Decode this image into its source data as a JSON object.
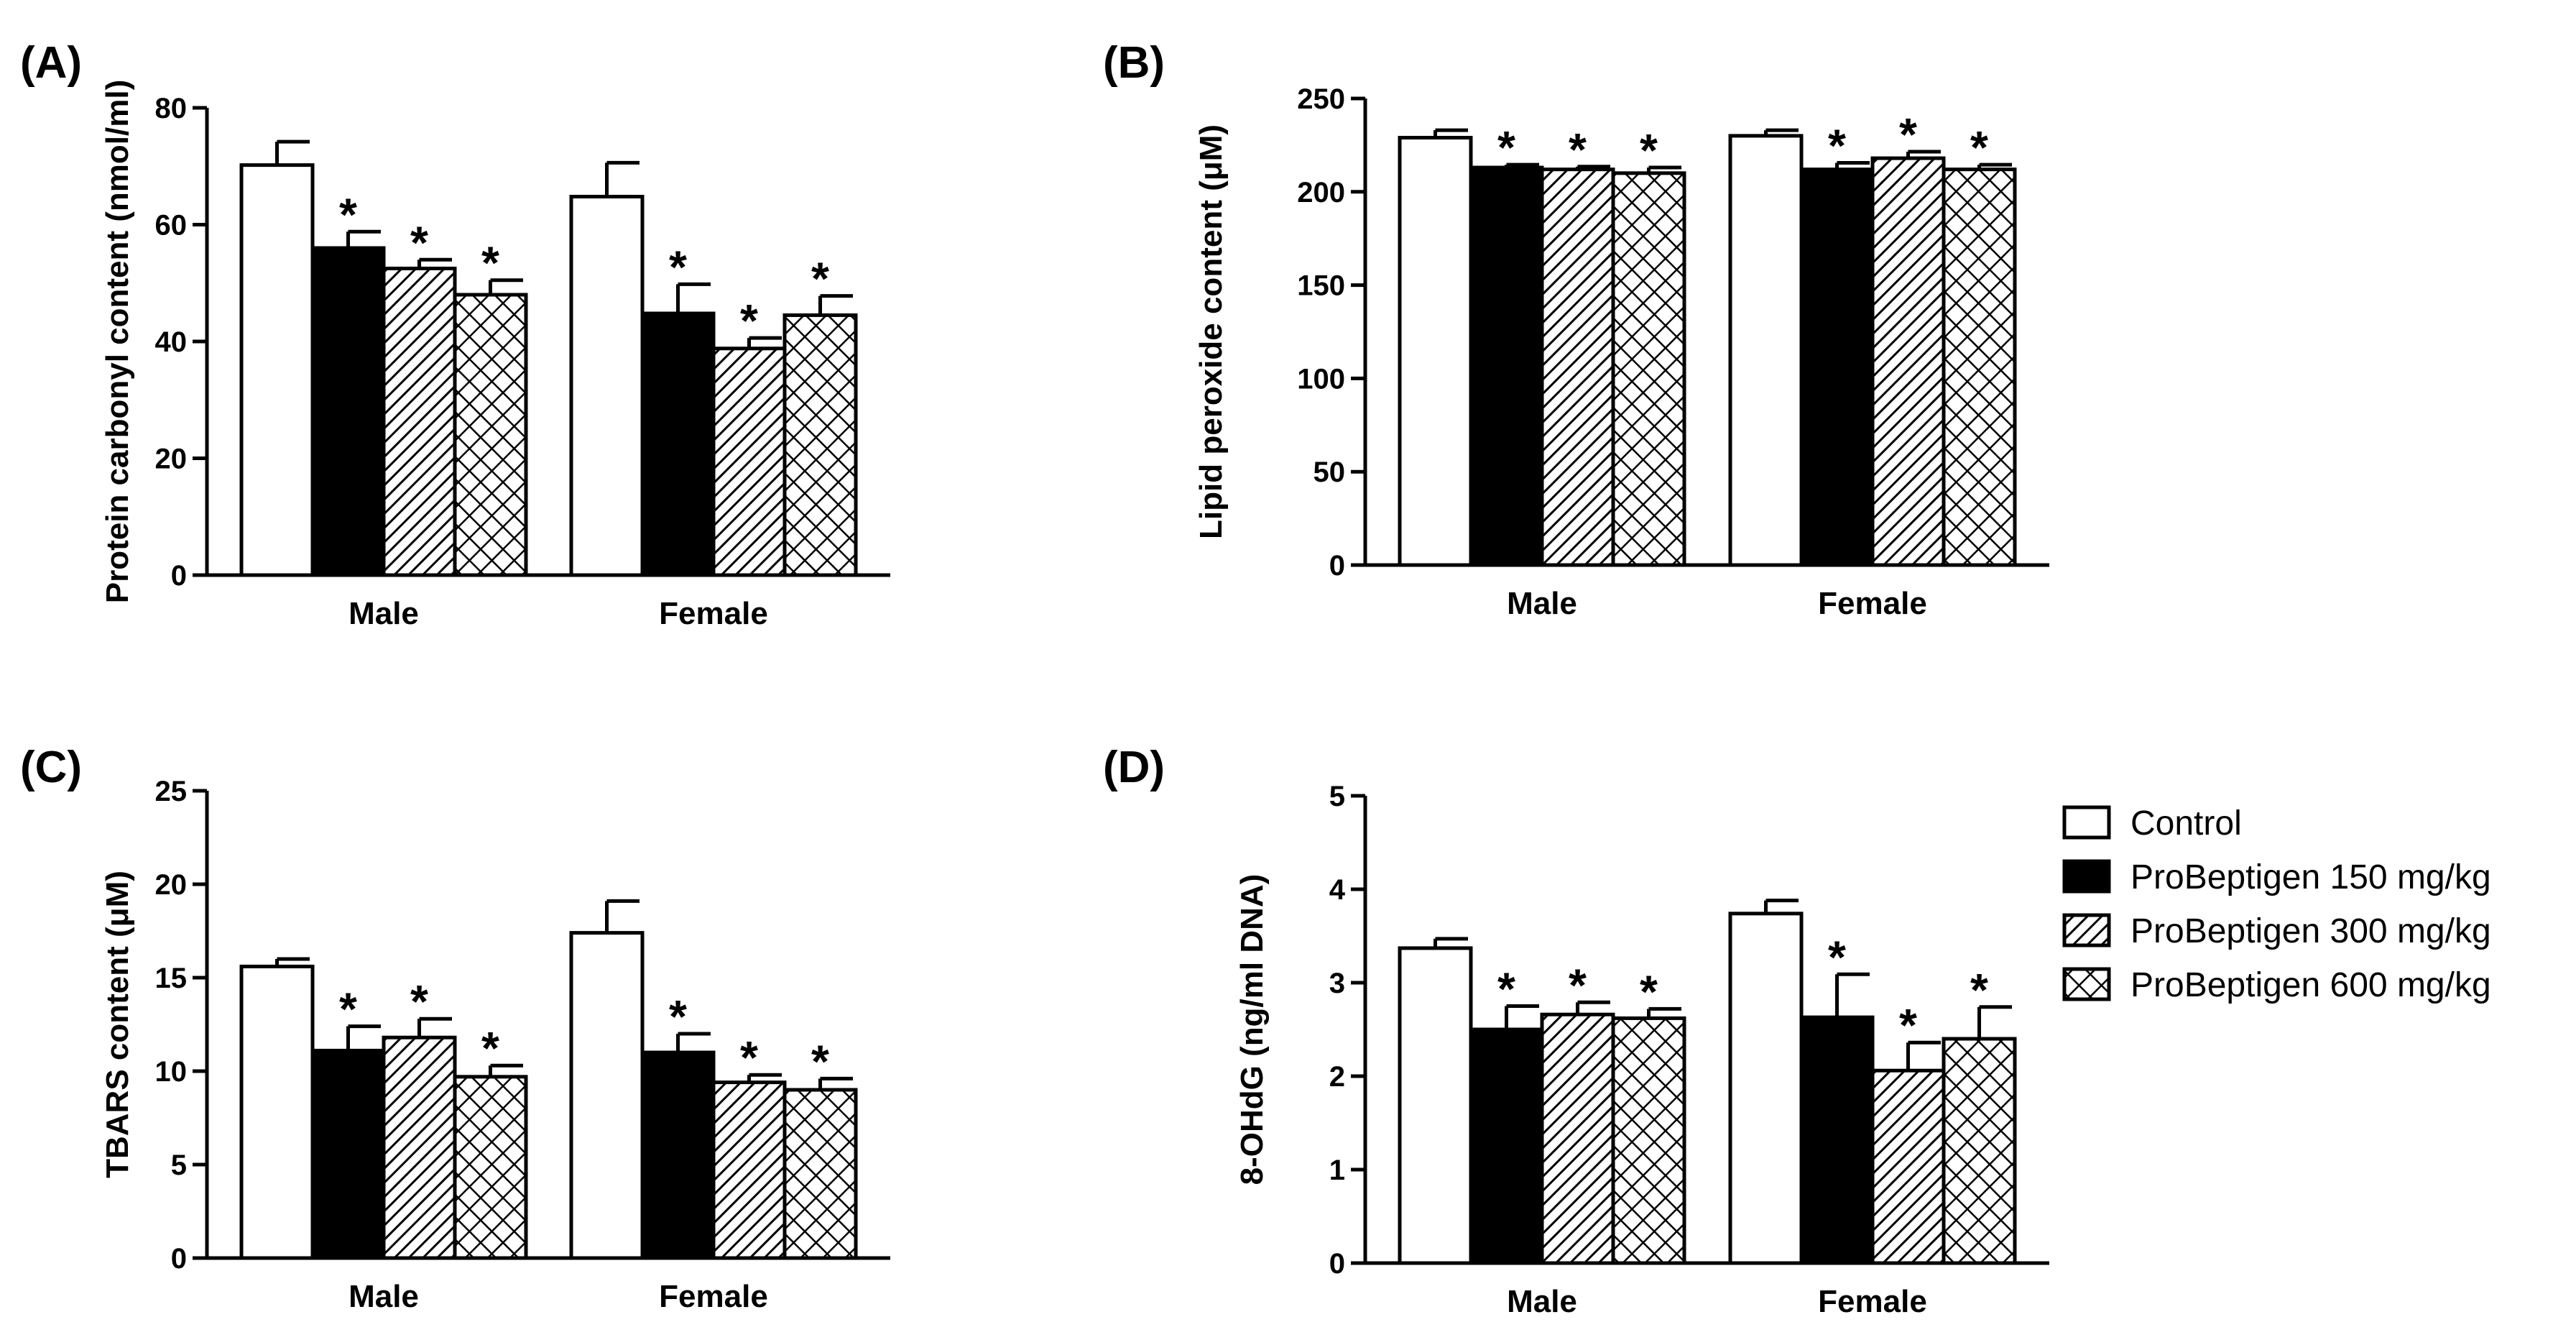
{
  "chart_data": [
    {
      "panel": "(A)",
      "type": "bar",
      "ylabel": "Protein carbonyl content (nmol/ml)",
      "ylim": [
        0,
        80
      ],
      "yticks": [
        0,
        20,
        40,
        60,
        80
      ],
      "categories": [
        "Male",
        "Female"
      ],
      "series": [
        {
          "name": "Control",
          "values": [
            70.2,
            64.8
          ],
          "errors": [
            4.0,
            5.8
          ],
          "sig": [
            false,
            false
          ]
        },
        {
          "name": "ProBeptigen 150 mg/kg",
          "values": [
            56.0,
            44.8
          ],
          "errors": [
            2.8,
            5.0
          ],
          "sig": [
            true,
            true
          ]
        },
        {
          "name": "ProBeptigen 300 mg/kg",
          "values": [
            52.5,
            38.8
          ],
          "errors": [
            1.5,
            1.8
          ],
          "sig": [
            true,
            true
          ]
        },
        {
          "name": "ProBeptigen 600 mg/kg",
          "values": [
            48.0,
            44.5
          ],
          "errors": [
            2.5,
            3.3
          ],
          "sig": [
            true,
            true
          ]
        }
      ]
    },
    {
      "panel": "(B)",
      "type": "bar",
      "ylabel": "Lipid peroxide content (μM)",
      "ylim": [
        0,
        250
      ],
      "yticks": [
        0,
        50,
        100,
        150,
        200,
        250
      ],
      "categories": [
        "Male",
        "Female"
      ],
      "series": [
        {
          "name": "Control",
          "values": [
            229,
            230
          ],
          "errors": [
            4,
            3
          ],
          "sig": [
            false,
            false
          ]
        },
        {
          "name": "ProBeptigen 150 mg/kg",
          "values": [
            213,
            212
          ],
          "errors": [
            1.5,
            3.5
          ],
          "sig": [
            true,
            true
          ]
        },
        {
          "name": "ProBeptigen 300 mg/kg",
          "values": [
            212,
            218
          ],
          "errors": [
            1.5,
            3.5
          ],
          "sig": [
            true,
            true
          ]
        },
        {
          "name": "ProBeptigen 600 mg/kg",
          "values": [
            210,
            212
          ],
          "errors": [
            3,
            2.5
          ],
          "sig": [
            true,
            true
          ]
        }
      ]
    },
    {
      "panel": "(C)",
      "type": "bar",
      "ylabel": "TBARS content (μM)",
      "ylim": [
        0,
        25
      ],
      "yticks": [
        0,
        5,
        10,
        15,
        20,
        25
      ],
      "categories": [
        "Male",
        "Female"
      ],
      "series": [
        {
          "name": "Control",
          "values": [
            15.6,
            17.4
          ],
          "errors": [
            0.4,
            1.7
          ],
          "sig": [
            false,
            false
          ]
        },
        {
          "name": "ProBeptigen 150 mg/kg",
          "values": [
            11.1,
            11.0
          ],
          "errors": [
            1.3,
            1.0
          ],
          "sig": [
            true,
            true
          ]
        },
        {
          "name": "ProBeptigen 300 mg/kg",
          "values": [
            11.8,
            9.4
          ],
          "errors": [
            1.0,
            0.4
          ],
          "sig": [
            true,
            true
          ]
        },
        {
          "name": "ProBeptigen 600 mg/kg",
          "values": [
            9.7,
            9.0
          ],
          "errors": [
            0.6,
            0.6
          ],
          "sig": [
            true,
            true
          ]
        }
      ]
    },
    {
      "panel": "(D)",
      "type": "bar",
      "ylabel": "8-OHdG (ng/ml DNA)",
      "ylim": [
        0,
        5
      ],
      "yticks": [
        0,
        1,
        2,
        3,
        4,
        5
      ],
      "categories": [
        "Male",
        "Female"
      ],
      "series": [
        {
          "name": "Control",
          "values": [
            3.37,
            3.74
          ],
          "errors": [
            0.1,
            0.14
          ],
          "sig": [
            false,
            false
          ]
        },
        {
          "name": "ProBeptigen 150 mg/kg",
          "values": [
            2.5,
            2.63
          ],
          "errors": [
            0.25,
            0.46
          ],
          "sig": [
            true,
            true
          ]
        },
        {
          "name": "ProBeptigen 300 mg/kg",
          "values": [
            2.66,
            2.06
          ],
          "errors": [
            0.13,
            0.3
          ],
          "sig": [
            true,
            true
          ]
        },
        {
          "name": "ProBeptigen 600 mg/kg",
          "values": [
            2.62,
            2.4
          ],
          "errors": [
            0.1,
            0.34
          ],
          "sig": [
            true,
            true
          ]
        }
      ]
    }
  ],
  "legend": {
    "items": [
      "Control",
      "ProBeptigen 150 mg/kg",
      "ProBeptigen 300 mg/kg",
      "ProBeptigen 600 mg/kg"
    ],
    "fills": [
      "white",
      "black",
      "diagonal-hatch",
      "crosshatch"
    ]
  },
  "significance_marker": "*"
}
